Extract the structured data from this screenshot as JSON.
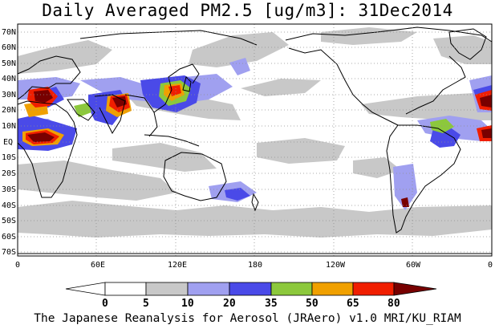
{
  "title": "Daily Averaged PM2.5 [ug/m3]: 31Dec2014",
  "footer": "The Japanese Reanalysis for Aerosol (JRAero) v1.0 MRI/KU_RIAM",
  "lat_labels": [
    "70N",
    "60N",
    "50N",
    "40N",
    "30N",
    "20N",
    "10N",
    "EQ",
    "10S",
    "20S",
    "30S",
    "40S",
    "50S",
    "60S",
    "70S"
  ],
  "lon_labels": [
    "0",
    "60E",
    "120E",
    "180",
    "120W",
    "60W",
    "0"
  ],
  "colorbar": {
    "levels": [
      "0",
      "5",
      "10",
      "20",
      "35",
      "50",
      "65",
      "80"
    ],
    "colors": [
      "#ffffff",
      "#c8c8c8",
      "#a0a0f0",
      "#4a4ae8",
      "#8cc83c",
      "#f0a000",
      "#f01e00",
      "#780000"
    ]
  },
  "colors": {
    "land_outline": "#000000",
    "grid": "#909090"
  }
}
